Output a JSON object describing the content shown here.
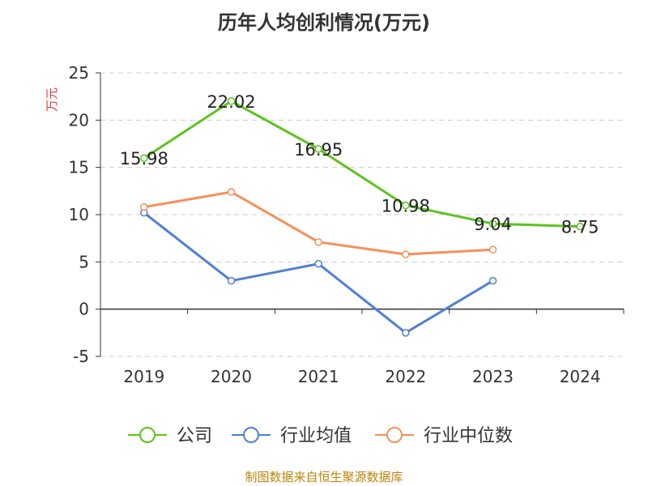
{
  "chart_data": {
    "type": "line",
    "title": "历年人均创利情况(万元)",
    "ylabel": "万元",
    "categories": [
      "2019",
      "2020",
      "2021",
      "2022",
      "2023",
      "2024"
    ],
    "ylim": [
      -5,
      25
    ],
    "yticks": [
      -5,
      0,
      5,
      10,
      15,
      20,
      25
    ],
    "grid": true,
    "legend_position": "bottom",
    "series": [
      {
        "name": "公司",
        "color": "#5cc31f",
        "values": [
          15.98,
          22.02,
          16.95,
          10.98,
          9.04,
          8.75
        ],
        "show_labels": true
      },
      {
        "name": "行业均值",
        "color": "#4f7fd6",
        "values": [
          10.2,
          3.0,
          4.8,
          -2.5,
          3.0,
          null
        ],
        "show_labels": false
      },
      {
        "name": "行业中位数",
        "color": "#f4915a",
        "values": [
          10.8,
          12.4,
          7.1,
          5.8,
          6.3,
          null
        ],
        "show_labels": false
      }
    ]
  },
  "footer": {
    "source": "制图数据来自恒生聚源数据库"
  },
  "colors": {
    "axis": "#333333",
    "grid": "#cccccc",
    "ylabel": "#e0393e",
    "source": "#b8860b"
  }
}
